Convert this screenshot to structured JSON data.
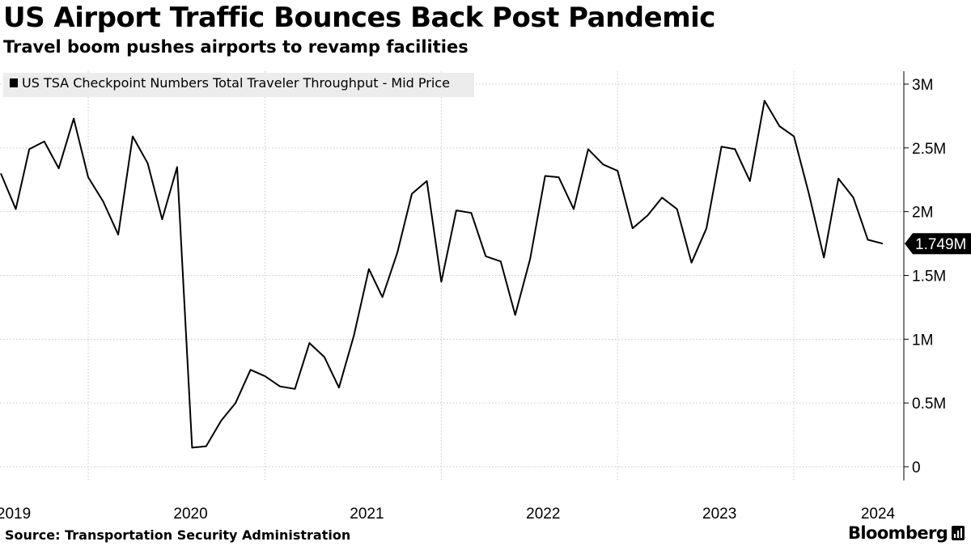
{
  "title": "US Airport Traffic Bounces Back Post Pandemic",
  "subtitle": "Travel boom pushes airports to revamp facilities",
  "source": "Source: Transportation Security Administration",
  "brand": "Bloomberg",
  "icons": {
    "brand_mark": "bar-chart-icon"
  },
  "colors": {
    "line": "#000000",
    "grid": "#c8c8c8",
    "legend_bg": "#ececec",
    "label_bg": "#000000"
  },
  "chart_data": {
    "type": "line",
    "title": "US Airport Traffic Bounces Back Post Pandemic",
    "subtitle": "Travel boom pushes airports to revamp facilities",
    "xlabel": "",
    "ylabel": "",
    "ylim": [
      0,
      3000000
    ],
    "y_axis_side": "right",
    "y_ticks": [
      {
        "value": 0,
        "label": "0"
      },
      {
        "value": 500000,
        "label": "0.5M"
      },
      {
        "value": 1000000,
        "label": "1M"
      },
      {
        "value": 1500000,
        "label": "1.5M"
      },
      {
        "value": 2000000,
        "label": "2M"
      },
      {
        "value": 2500000,
        "label": "2.5M"
      },
      {
        "value": 3000000,
        "label": "3M"
      }
    ],
    "x_ticks": [
      "2019",
      "2020",
      "2021",
      "2022",
      "2023",
      "2024"
    ],
    "x_separators": [
      "2019-07-01",
      "2020-07-01",
      "2021-07-01",
      "2022-07-01",
      "2023-07-01"
    ],
    "grid": true,
    "legend_position": "top-left",
    "last_value_label": "1.749M",
    "series": [
      {
        "name": "US TSA Checkpoint Numbers Total Traveler Throughput - Mid Price",
        "points": [
          [
            "2019-01-01",
            2300000
          ],
          [
            "2019-02-01",
            2020000
          ],
          [
            "2019-03-01",
            2490000
          ],
          [
            "2019-04-01",
            2550000
          ],
          [
            "2019-05-01",
            2340000
          ],
          [
            "2019-06-01",
            2730000
          ],
          [
            "2019-07-01",
            2270000
          ],
          [
            "2019-08-01",
            2080000
          ],
          [
            "2019-09-01",
            1820000
          ],
          [
            "2019-10-01",
            2590000
          ],
          [
            "2019-11-01",
            2380000
          ],
          [
            "2019-12-01",
            1940000
          ],
          [
            "2020-01-01",
            2350000
          ],
          [
            "2020-02-01",
            150000
          ],
          [
            "2020-03-01",
            160000
          ],
          [
            "2020-04-01",
            360000
          ],
          [
            "2020-05-01",
            500000
          ],
          [
            "2020-06-01",
            760000
          ],
          [
            "2020-07-01",
            710000
          ],
          [
            "2020-08-01",
            630000
          ],
          [
            "2020-09-01",
            610000
          ],
          [
            "2020-10-01",
            970000
          ],
          [
            "2020-11-01",
            860000
          ],
          [
            "2020-12-01",
            620000
          ],
          [
            "2021-01-01",
            1030000
          ],
          [
            "2021-02-01",
            1550000
          ],
          [
            "2021-03-01",
            1330000
          ],
          [
            "2021-04-01",
            1680000
          ],
          [
            "2021-05-01",
            2140000
          ],
          [
            "2021-06-01",
            2240000
          ],
          [
            "2021-07-01",
            1450000
          ],
          [
            "2021-08-01",
            2010000
          ],
          [
            "2021-09-01",
            1990000
          ],
          [
            "2021-10-01",
            1650000
          ],
          [
            "2021-11-01",
            1610000
          ],
          [
            "2021-12-01",
            1190000
          ],
          [
            "2022-01-01",
            1630000
          ],
          [
            "2022-02-01",
            2280000
          ],
          [
            "2022-03-01",
            2270000
          ],
          [
            "2022-04-01",
            2020000
          ],
          [
            "2022-05-01",
            2490000
          ],
          [
            "2022-06-01",
            2370000
          ],
          [
            "2022-07-01",
            2320000
          ],
          [
            "2022-08-01",
            1870000
          ],
          [
            "2022-09-01",
            1970000
          ],
          [
            "2022-10-01",
            2110000
          ],
          [
            "2022-11-01",
            2020000
          ],
          [
            "2022-12-01",
            1600000
          ],
          [
            "2023-01-01",
            1870000
          ],
          [
            "2023-02-01",
            2510000
          ],
          [
            "2023-03-01",
            2490000
          ],
          [
            "2023-04-01",
            2240000
          ],
          [
            "2023-05-01",
            2870000
          ],
          [
            "2023-06-01",
            2670000
          ],
          [
            "2023-07-01",
            2590000
          ],
          [
            "2023-08-01",
            2140000
          ],
          [
            "2023-09-01",
            1640000
          ],
          [
            "2023-10-01",
            2260000
          ],
          [
            "2023-11-01",
            2110000
          ],
          [
            "2023-12-01",
            1780000
          ],
          [
            "2024-01-01",
            1749000
          ]
        ]
      }
    ]
  }
}
